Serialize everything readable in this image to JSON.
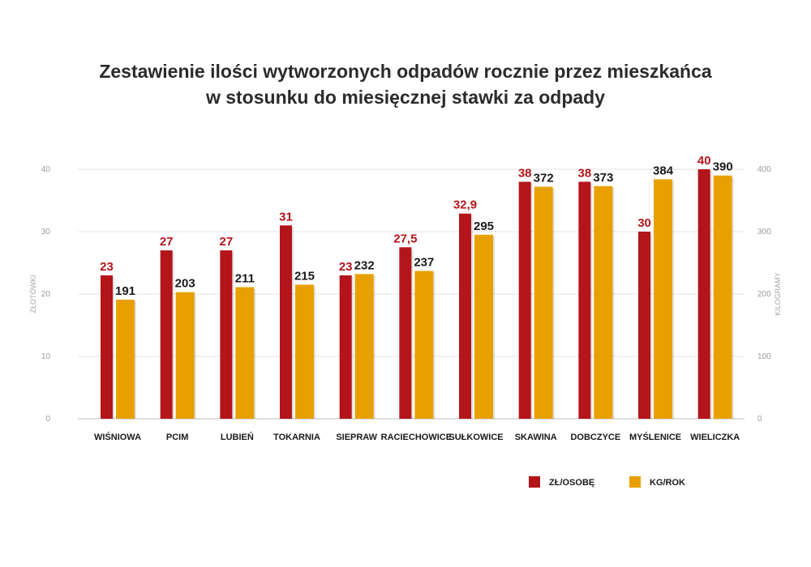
{
  "chart_data": {
    "type": "bar",
    "title_lines": [
      "Zestawienie ilości wytworzonych odpadów rocznie przez mieszkańca",
      "w stosunku do miesięcznej stawki za odpady"
    ],
    "categories": [
      "WIŚNIOWA",
      "PCIM",
      "LUBIEŃ",
      "TOKARNIA",
      "SIEPRAW",
      "RACIECHOWICE",
      "SUŁKOWICE",
      "SKAWINA",
      "DOBCZYCE",
      "MYŚLENICE",
      "WIELICZKA"
    ],
    "series": [
      {
        "name": "ZŁ/OSOBĘ",
        "axis": "left",
        "color": "#b3151b",
        "values": [
          23,
          27,
          27,
          31,
          23,
          27.5,
          32.9,
          38,
          38,
          30,
          40
        ],
        "labels": [
          "23",
          "27",
          "27",
          "31",
          "23",
          "27,5",
          "32,9",
          "38",
          "38",
          "30",
          "40"
        ]
      },
      {
        "name": "KG/ROK",
        "axis": "right",
        "color": "#e8a000",
        "values": [
          191,
          203,
          211,
          215,
          232,
          237,
          295,
          372,
          373,
          384,
          390
        ],
        "labels": [
          "191",
          "203",
          "211",
          "215",
          "232",
          "237",
          "295",
          "372",
          "373",
          "384",
          "390"
        ]
      }
    ],
    "ylabel_left": "ZŁOTÓWKI",
    "ylabel_right": "KILOGRAMY",
    "ylim_left": [
      0,
      40
    ],
    "ylim_right": [
      0,
      400
    ],
    "yticks_left": [
      "0",
      "10",
      "20",
      "30",
      "40"
    ],
    "yticks_right": [
      "0",
      "100",
      "200",
      "300",
      "400"
    ],
    "grid": true,
    "legend_position": "bottom-right"
  }
}
